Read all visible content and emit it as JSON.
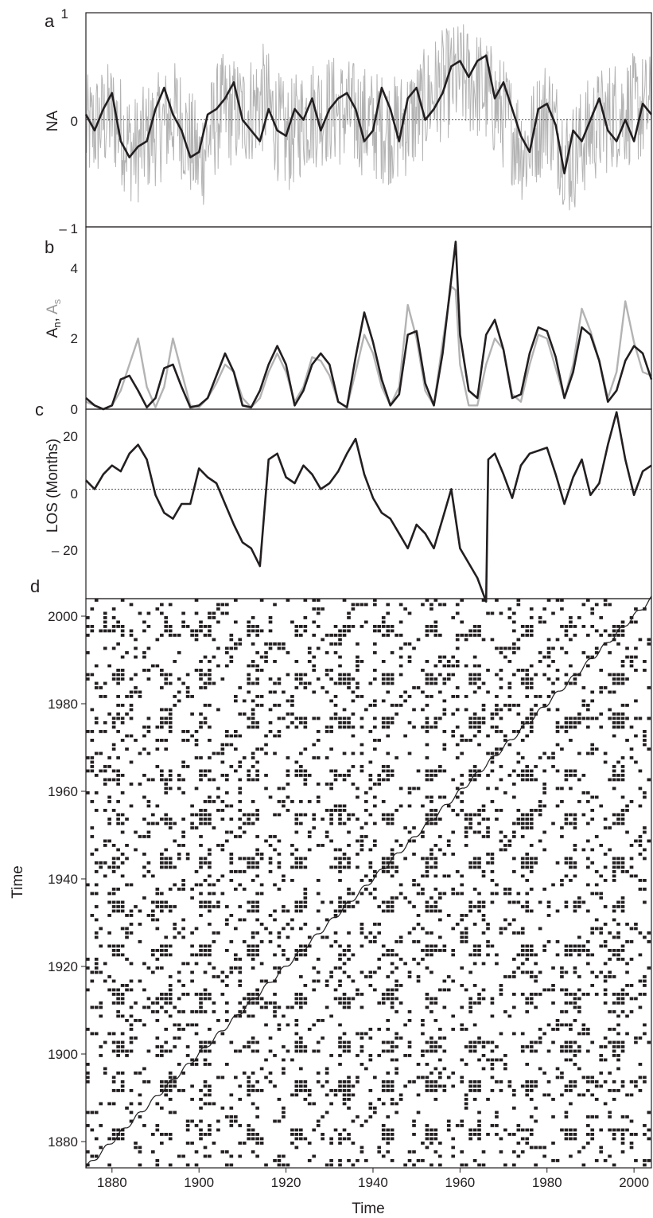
{
  "colors": {
    "dark": "#231f20",
    "light": "#b3b3b3",
    "background": "#ffffff"
  },
  "chart_data": [
    {
      "panel": "a",
      "type": "line",
      "ylabel": "NA",
      "ylim": [
        -1,
        1
      ],
      "yticks": [
        "1",
        "0",
        "– 1"
      ],
      "xlim": [
        1874,
        2004
      ],
      "reference_line": 0,
      "series": [
        {
          "color": "light",
          "role": "monthly",
          "x": [
            1875,
            1880,
            1885,
            1890,
            1895,
            1900,
            1905,
            1910,
            1915,
            1920,
            1925,
            1930,
            1935,
            1940,
            1945,
            1950,
            1955,
            1960,
            1965,
            1970,
            1975,
            1980,
            1985,
            1990,
            1995,
            2000,
            2004
          ],
          "y": [
            -0.1,
            0.05,
            -0.3,
            -0.1,
            0.05,
            -0.4,
            0.1,
            0.05,
            0.2,
            -0.2,
            0.05,
            0.1,
            0.05,
            -0.05,
            -0.1,
            0.05,
            0.3,
            0.4,
            0.3,
            0.05,
            -0.3,
            0.1,
            -0.4,
            -0.1,
            0.05,
            0.1,
            0.1
          ]
        },
        {
          "color": "dark",
          "role": "smoothed",
          "x": [
            1874,
            1876,
            1878,
            1880,
            1882,
            1884,
            1886,
            1888,
            1890,
            1892,
            1894,
            1896,
            1898,
            1900,
            1902,
            1904,
            1906,
            1908,
            1910,
            1912,
            1914,
            1916,
            1918,
            1920,
            1922,
            1924,
            1926,
            1928,
            1930,
            1932,
            1934,
            1936,
            1938,
            1940,
            1942,
            1944,
            1946,
            1948,
            1950,
            1952,
            1954,
            1956,
            1958,
            1960,
            1962,
            1964,
            1966,
            1968,
            1970,
            1972,
            1974,
            1976,
            1978,
            1980,
            1982,
            1984,
            1986,
            1988,
            1990,
            1992,
            1994,
            1996,
            1998,
            2000,
            2002,
            2004
          ],
          "y": [
            0.05,
            -0.1,
            0.1,
            0.25,
            -0.2,
            -0.35,
            -0.25,
            -0.2,
            0.1,
            0.3,
            0.05,
            -0.1,
            -0.35,
            -0.3,
            0.05,
            0.1,
            0.2,
            0.35,
            0.0,
            -0.1,
            -0.2,
            0.1,
            -0.1,
            -0.15,
            0.1,
            0.0,
            0.2,
            -0.1,
            0.1,
            0.2,
            0.25,
            0.1,
            -0.2,
            -0.1,
            0.3,
            0.1,
            -0.2,
            0.2,
            0.3,
            0.0,
            0.1,
            0.25,
            0.5,
            0.55,
            0.4,
            0.55,
            0.6,
            0.2,
            0.35,
            0.1,
            -0.15,
            -0.3,
            0.1,
            0.15,
            -0.05,
            -0.5,
            -0.1,
            -0.2,
            0.0,
            0.2,
            -0.1,
            -0.2,
            0.0,
            -0.2,
            0.15,
            0.05
          ]
        }
      ]
    },
    {
      "panel": "b",
      "type": "line",
      "ylabel_parts": [
        "A",
        "n",
        ", ",
        "A",
        "s"
      ],
      "ylim": [
        0,
        4.9
      ],
      "yticks": [
        "0",
        "2",
        "4"
      ],
      "xlim": [
        1874,
        2004
      ],
      "series": [
        {
          "color": "dark",
          "role": "north",
          "x": [
            1874,
            1876,
            1878,
            1880,
            1882,
            1884,
            1886,
            1888,
            1890,
            1892,
            1894,
            1896,
            1898,
            1900,
            1902,
            1904,
            1906,
            1908,
            1910,
            1912,
            1914,
            1916,
            1918,
            1920,
            1922,
            1924,
            1926,
            1928,
            1930,
            1932,
            1934,
            1936,
            1938,
            1940,
            1942,
            1944,
            1946,
            1948,
            1950,
            1952,
            1954,
            1956,
            1958,
            1959,
            1960,
            1962,
            1964,
            1966,
            1968,
            1970,
            1972,
            1974,
            1976,
            1978,
            1980,
            1982,
            1984,
            1986,
            1988,
            1990,
            1992,
            1994,
            1996,
            1998,
            2000,
            2002,
            2004
          ],
          "y": [
            0.3,
            0.1,
            0.0,
            0.1,
            0.8,
            0.9,
            0.5,
            0.05,
            0.3,
            1.1,
            1.2,
            0.6,
            0.05,
            0.1,
            0.3,
            0.9,
            1.5,
            1.0,
            0.1,
            0.05,
            0.5,
            1.2,
            1.7,
            1.2,
            0.1,
            0.5,
            1.2,
            1.5,
            1.2,
            0.2,
            0.05,
            1.4,
            2.6,
            1.8,
            0.8,
            0.1,
            0.4,
            2.0,
            2.1,
            0.7,
            0.1,
            1.5,
            3.5,
            4.5,
            2.0,
            0.5,
            0.3,
            2.0,
            2.4,
            1.6,
            0.3,
            0.4,
            1.5,
            2.2,
            2.1,
            1.4,
            0.3,
            1.0,
            2.2,
            2.0,
            1.3,
            0.2,
            0.5,
            1.3,
            1.7,
            1.5,
            0.8
          ]
        },
        {
          "color": "light",
          "role": "south",
          "x": [
            1874,
            1876,
            1878,
            1880,
            1882,
            1884,
            1886,
            1888,
            1890,
            1892,
            1894,
            1896,
            1898,
            1900,
            1902,
            1904,
            1906,
            1908,
            1910,
            1912,
            1914,
            1916,
            1918,
            1920,
            1922,
            1924,
            1926,
            1928,
            1930,
            1932,
            1934,
            1936,
            1938,
            1940,
            1942,
            1944,
            1946,
            1948,
            1950,
            1952,
            1954,
            1956,
            1958,
            1959,
            1960,
            1962,
            1964,
            1966,
            1968,
            1970,
            1972,
            1974,
            1976,
            1978,
            1980,
            1982,
            1984,
            1986,
            1988,
            1990,
            1992,
            1994,
            1996,
            1998,
            2000,
            2002,
            2004
          ],
          "y": [
            0.2,
            0.1,
            0.0,
            0.1,
            0.5,
            1.2,
            1.9,
            0.6,
            0.05,
            0.6,
            1.9,
            1.0,
            0.1,
            0.05,
            0.3,
            0.7,
            1.2,
            1.0,
            0.3,
            0.05,
            0.3,
            1.0,
            1.5,
            1.0,
            0.2,
            0.6,
            1.4,
            1.3,
            0.9,
            0.2,
            0.05,
            1.0,
            2.0,
            1.5,
            0.6,
            0.1,
            0.6,
            2.8,
            1.9,
            0.5,
            0.1,
            1.8,
            3.3,
            3.2,
            1.2,
            0.1,
            0.1,
            1.2,
            1.9,
            1.6,
            0.4,
            0.2,
            1.2,
            2.0,
            1.9,
            1.1,
            0.3,
            1.2,
            2.7,
            2.1,
            1.3,
            0.3,
            1.0,
            2.9,
            1.8,
            1.0,
            0.9
          ]
        }
      ]
    },
    {
      "panel": "c",
      "type": "line",
      "ylabel": "LOS (Months)",
      "ylim": [
        -37,
        27
      ],
      "yticks": [
        "20",
        "0",
        "– 20"
      ],
      "xlim": [
        1874,
        2004
      ],
      "reference_line": 0,
      "series": [
        {
          "color": "dark",
          "x": [
            1874,
            1876,
            1878,
            1880,
            1882,
            1884,
            1886,
            1888,
            1890,
            1892,
            1894,
            1896,
            1898,
            1900,
            1902,
            1904,
            1906,
            1908,
            1910,
            1912,
            1914,
            1916,
            1918,
            1920,
            1922,
            1924,
            1926,
            1928,
            1930,
            1932,
            1934,
            1936,
            1938,
            1940,
            1942,
            1944,
            1946,
            1948,
            1950,
            1952,
            1954,
            1956,
            1958,
            1960,
            1962,
            1964,
            1966,
            1966.5,
            1968,
            1970,
            1972,
            1974,
            1976,
            1978,
            1980,
            1982,
            1984,
            1986,
            1988,
            1990,
            1992,
            1994,
            1996,
            1998,
            2000,
            2002,
            2004
          ],
          "y": [
            3,
            0,
            5,
            8,
            6,
            12,
            15,
            10,
            -2,
            -8,
            -10,
            -5,
            -5,
            7,
            4,
            2,
            -5,
            -12,
            -18,
            -20,
            -26,
            10,
            12,
            4,
            2,
            8,
            5,
            0,
            2,
            6,
            12,
            17,
            5,
            -3,
            -8,
            -10,
            -15,
            -20,
            -12,
            -15,
            -20,
            -10,
            0,
            -20,
            -25,
            -30,
            -38,
            10,
            12,
            5,
            -3,
            8,
            12,
            13,
            14,
            5,
            -5,
            4,
            10,
            -2,
            2,
            15,
            26,
            10,
            -2,
            6,
            8
          ]
        }
      ]
    },
    {
      "panel": "d",
      "type": "heatmap",
      "xlabel": "Time",
      "ylabel": "Time",
      "xlim": [
        1874,
        2004
      ],
      "ylim": [
        1874,
        2004
      ],
      "xticks": [
        "1880",
        "1900",
        "1920",
        "1940",
        "1960",
        "1980",
        "2000"
      ],
      "yticks": [
        "1880",
        "1900",
        "1920",
        "1940",
        "1960",
        "1980",
        "2000"
      ],
      "marked_events": [
        1881,
        1892,
        1901,
        1912,
        1923,
        1933,
        1943,
        1953,
        1963,
        1975,
        1985,
        1996
      ],
      "cell_years": 1.0
    }
  ]
}
